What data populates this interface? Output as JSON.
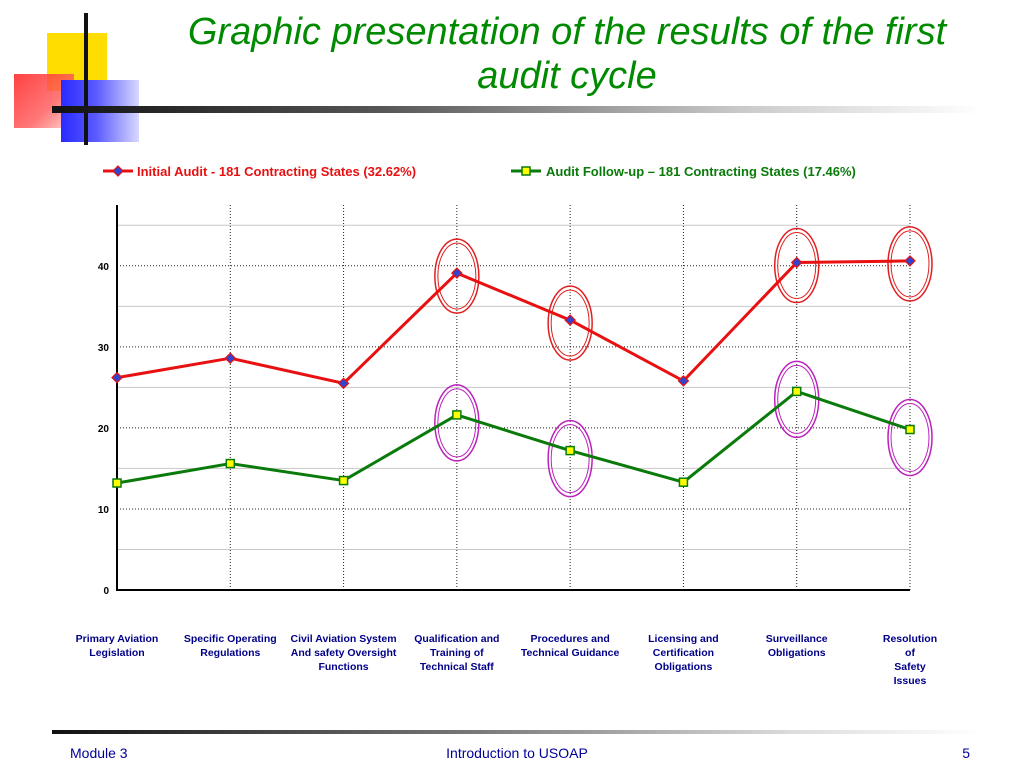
{
  "slide": {
    "title": "Graphic presentation of the results of the first audit cycle",
    "footer": {
      "left": "Module 3",
      "center": "Introduction to USOAP",
      "right": "5"
    }
  },
  "colors": {
    "title": "#008a00",
    "series_initial": "#e81010",
    "series_followup": "#0a7a0a",
    "marker_initial_fill": "#3344cc",
    "marker_followup_fill": "#ffff00",
    "circle_initial": "#e02020",
    "circle_followup": "#bb22bb",
    "category_text": "#000088",
    "footer_text": "#000099"
  },
  "chart_data": {
    "type": "line",
    "categories": [
      "Primary Aviation\nLegislation",
      "Specific Operating\nRegulations",
      "Civil Aviation System\nAnd safety Oversight\nFunctions",
      "Qualification and\nTraining of\nTechnical Staff",
      "Procedures and\nTechnical Guidance",
      "Licensing and\nCertification\nObligations",
      "Surveillance\nObligations",
      "Resolution\nof\nSafety\nIssues"
    ],
    "series": [
      {
        "name": "Initial Audit - 181 Contracting States (32.62%)",
        "values": [
          26.2,
          28.6,
          25.5,
          39.1,
          33.3,
          25.8,
          40.4,
          40.6
        ],
        "marker": "diamond"
      },
      {
        "name": "Audit Follow-up – 181 Contracting States  (17.46%)",
        "values": [
          13.2,
          15.6,
          13.5,
          21.6,
          17.2,
          13.3,
          24.5,
          19.8
        ],
        "marker": "square"
      }
    ],
    "ylim": [
      0,
      47.5
    ],
    "yticks": [
      "0",
      "10",
      "20",
      "30",
      "40"
    ],
    "grid": true,
    "legend": "top",
    "highlighted": {
      "initial": [
        3,
        4,
        6,
        7
      ],
      "followup": [
        3,
        4,
        6,
        7
      ]
    }
  }
}
